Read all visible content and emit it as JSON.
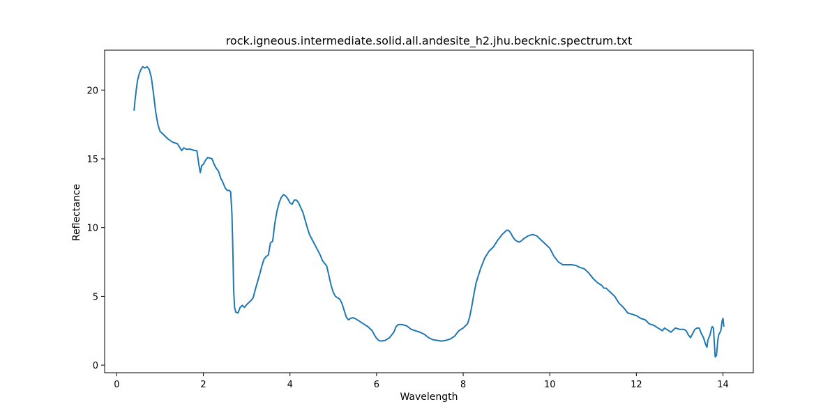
{
  "chart_data": {
    "type": "line",
    "title": "rock.igneous.intermediate.solid.all.andesite_h2.jhu.becknic.spectrum.txt",
    "xlabel": "Wavelength",
    "ylabel": "Reflectance",
    "xlim": [
      -0.28,
      14.7
    ],
    "ylim": [
      -0.55,
      22.9
    ],
    "xticks": [
      0,
      2,
      4,
      6,
      8,
      10,
      12,
      14
    ],
    "yticks": [
      0,
      5,
      10,
      15,
      20
    ],
    "grid": false,
    "series": [
      {
        "color": "#1f77b4",
        "points": [
          [
            0.4,
            18.5
          ],
          [
            0.42,
            19.2
          ],
          [
            0.45,
            20.0
          ],
          [
            0.48,
            20.7
          ],
          [
            0.52,
            21.2
          ],
          [
            0.56,
            21.5
          ],
          [
            0.6,
            21.7
          ],
          [
            0.65,
            21.6
          ],
          [
            0.7,
            21.7
          ],
          [
            0.75,
            21.5
          ],
          [
            0.8,
            20.9
          ],
          [
            0.85,
            19.7
          ],
          [
            0.9,
            18.4
          ],
          [
            0.95,
            17.5
          ],
          [
            1.0,
            17.0
          ],
          [
            1.1,
            16.7
          ],
          [
            1.2,
            16.4
          ],
          [
            1.3,
            16.2
          ],
          [
            1.4,
            16.1
          ],
          [
            1.5,
            15.6
          ],
          [
            1.55,
            15.8
          ],
          [
            1.6,
            15.7
          ],
          [
            1.7,
            15.7
          ],
          [
            1.8,
            15.6
          ],
          [
            1.85,
            15.6
          ],
          [
            1.9,
            14.5
          ],
          [
            1.93,
            14.0
          ],
          [
            1.96,
            14.5
          ],
          [
            2.0,
            14.6
          ],
          [
            2.05,
            14.9
          ],
          [
            2.1,
            15.1
          ],
          [
            2.2,
            15.0
          ],
          [
            2.25,
            14.6
          ],
          [
            2.3,
            14.3
          ],
          [
            2.35,
            14.1
          ],
          [
            2.4,
            13.6
          ],
          [
            2.45,
            13.3
          ],
          [
            2.5,
            12.9
          ],
          [
            2.55,
            12.7
          ],
          [
            2.6,
            12.7
          ],
          [
            2.63,
            12.6
          ],
          [
            2.66,
            11.0
          ],
          [
            2.68,
            8.5
          ],
          [
            2.7,
            5.5
          ],
          [
            2.72,
            4.2
          ],
          [
            2.75,
            3.85
          ],
          [
            2.8,
            3.8
          ],
          [
            2.85,
            4.2
          ],
          [
            2.9,
            4.35
          ],
          [
            2.95,
            4.2
          ],
          [
            3.0,
            4.4
          ],
          [
            3.1,
            4.7
          ],
          [
            3.15,
            4.9
          ],
          [
            3.2,
            5.5
          ],
          [
            3.3,
            6.6
          ],
          [
            3.35,
            7.2
          ],
          [
            3.4,
            7.7
          ],
          [
            3.45,
            7.9
          ],
          [
            3.5,
            8.0
          ],
          [
            3.55,
            8.9
          ],
          [
            3.6,
            9.0
          ],
          [
            3.65,
            10.3
          ],
          [
            3.7,
            11.2
          ],
          [
            3.75,
            11.8
          ],
          [
            3.8,
            12.2
          ],
          [
            3.85,
            12.4
          ],
          [
            3.9,
            12.3
          ],
          [
            3.95,
            12.1
          ],
          [
            4.0,
            11.8
          ],
          [
            4.05,
            11.7
          ],
          [
            4.1,
            12.0
          ],
          [
            4.15,
            12.0
          ],
          [
            4.2,
            11.8
          ],
          [
            4.3,
            11.1
          ],
          [
            4.4,
            10.0
          ],
          [
            4.45,
            9.5
          ],
          [
            4.5,
            9.2
          ],
          [
            4.6,
            8.6
          ],
          [
            4.7,
            8.0
          ],
          [
            4.75,
            7.6
          ],
          [
            4.8,
            7.4
          ],
          [
            4.85,
            7.2
          ],
          [
            4.9,
            6.5
          ],
          [
            4.95,
            5.8
          ],
          [
            5.0,
            5.3
          ],
          [
            5.05,
            5.0
          ],
          [
            5.15,
            4.8
          ],
          [
            5.2,
            4.5
          ],
          [
            5.25,
            4.0
          ],
          [
            5.3,
            3.5
          ],
          [
            5.35,
            3.3
          ],
          [
            5.4,
            3.4
          ],
          [
            5.45,
            3.45
          ],
          [
            5.5,
            3.4
          ],
          [
            5.6,
            3.2
          ],
          [
            5.7,
            3.0
          ],
          [
            5.8,
            2.8
          ],
          [
            5.9,
            2.5
          ],
          [
            5.95,
            2.2
          ],
          [
            6.0,
            1.95
          ],
          [
            6.05,
            1.8
          ],
          [
            6.1,
            1.75
          ],
          [
            6.2,
            1.8
          ],
          [
            6.3,
            2.0
          ],
          [
            6.4,
            2.4
          ],
          [
            6.45,
            2.8
          ],
          [
            6.5,
            2.95
          ],
          [
            6.6,
            2.95
          ],
          [
            6.7,
            2.85
          ],
          [
            6.8,
            2.6
          ],
          [
            6.9,
            2.5
          ],
          [
            7.0,
            2.4
          ],
          [
            7.1,
            2.25
          ],
          [
            7.2,
            2.0
          ],
          [
            7.3,
            1.85
          ],
          [
            7.4,
            1.8
          ],
          [
            7.5,
            1.75
          ],
          [
            7.6,
            1.8
          ],
          [
            7.7,
            1.9
          ],
          [
            7.8,
            2.1
          ],
          [
            7.9,
            2.5
          ],
          [
            8.0,
            2.7
          ],
          [
            8.1,
            3.0
          ],
          [
            8.15,
            3.5
          ],
          [
            8.2,
            4.3
          ],
          [
            8.25,
            5.2
          ],
          [
            8.3,
            6.0
          ],
          [
            8.4,
            7.0
          ],
          [
            8.5,
            7.8
          ],
          [
            8.6,
            8.3
          ],
          [
            8.7,
            8.6
          ],
          [
            8.8,
            9.1
          ],
          [
            8.9,
            9.5
          ],
          [
            9.0,
            9.8
          ],
          [
            9.05,
            9.8
          ],
          [
            9.1,
            9.6
          ],
          [
            9.15,
            9.3
          ],
          [
            9.2,
            9.1
          ],
          [
            9.25,
            9.0
          ],
          [
            9.3,
            8.95
          ],
          [
            9.35,
            9.05
          ],
          [
            9.4,
            9.2
          ],
          [
            9.5,
            9.4
          ],
          [
            9.6,
            9.5
          ],
          [
            9.7,
            9.4
          ],
          [
            9.8,
            9.1
          ],
          [
            9.9,
            8.8
          ],
          [
            10.0,
            8.5
          ],
          [
            10.1,
            7.9
          ],
          [
            10.2,
            7.5
          ],
          [
            10.3,
            7.3
          ],
          [
            10.4,
            7.3
          ],
          [
            10.5,
            7.3
          ],
          [
            10.6,
            7.25
          ],
          [
            10.7,
            7.1
          ],
          [
            10.8,
            7.0
          ],
          [
            10.9,
            6.7
          ],
          [
            11.0,
            6.3
          ],
          [
            11.1,
            6.0
          ],
          [
            11.2,
            5.8
          ],
          [
            11.25,
            5.6
          ],
          [
            11.3,
            5.6
          ],
          [
            11.4,
            5.3
          ],
          [
            11.5,
            5.0
          ],
          [
            11.6,
            4.5
          ],
          [
            11.7,
            4.2
          ],
          [
            11.8,
            3.8
          ],
          [
            11.9,
            3.7
          ],
          [
            12.0,
            3.6
          ],
          [
            12.1,
            3.4
          ],
          [
            12.2,
            3.3
          ],
          [
            12.3,
            3.0
          ],
          [
            12.4,
            2.9
          ],
          [
            12.5,
            2.7
          ],
          [
            12.6,
            2.5
          ],
          [
            12.65,
            2.7
          ],
          [
            12.7,
            2.6
          ],
          [
            12.8,
            2.4
          ],
          [
            12.9,
            2.7
          ],
          [
            13.0,
            2.6
          ],
          [
            13.1,
            2.6
          ],
          [
            13.15,
            2.5
          ],
          [
            13.2,
            2.2
          ],
          [
            13.25,
            2.0
          ],
          [
            13.3,
            2.3
          ],
          [
            13.35,
            2.6
          ],
          [
            13.4,
            2.7
          ],
          [
            13.45,
            2.7
          ],
          [
            13.5,
            2.3
          ],
          [
            13.55,
            2.0
          ],
          [
            13.6,
            1.5
          ],
          [
            13.63,
            1.3
          ],
          [
            13.65,
            1.8
          ],
          [
            13.7,
            2.2
          ],
          [
            13.73,
            2.6
          ],
          [
            13.75,
            2.8
          ],
          [
            13.78,
            2.7
          ],
          [
            13.8,
            1.6
          ],
          [
            13.82,
            0.6
          ],
          [
            13.85,
            0.7
          ],
          [
            13.88,
            1.8
          ],
          [
            13.9,
            2.2
          ],
          [
            13.95,
            2.5
          ],
          [
            13.98,
            3.2
          ],
          [
            14.0,
            3.4
          ],
          [
            14.02,
            2.8
          ]
        ]
      }
    ]
  }
}
